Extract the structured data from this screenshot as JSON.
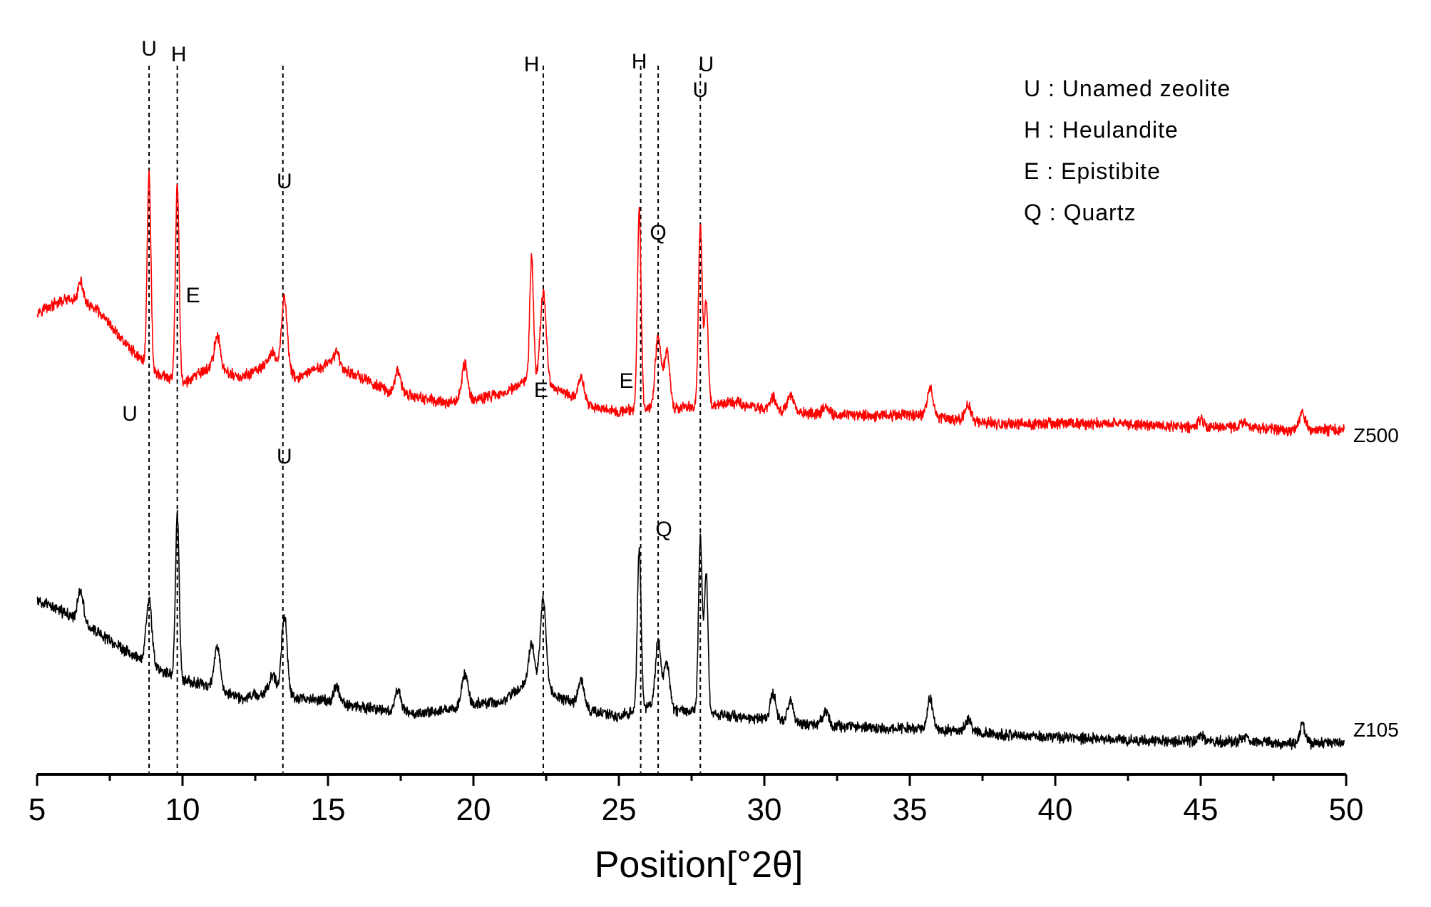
{
  "chart_data": {
    "type": "line",
    "xlabel": "Position[°2θ]",
    "xlim": [
      5,
      50
    ],
    "xticks": [
      5,
      10,
      15,
      20,
      25,
      30,
      35,
      40,
      45,
      50
    ],
    "x_minor_step": 2.5,
    "ylabel": "",
    "yaxis_visible": false,
    "grid": false,
    "legend_position": "top-right",
    "legend": [
      "U : Unamed zeolite",
      "H : Heulandite",
      "E : Epistibite",
      "Q : Quartz"
    ],
    "series": [
      {
        "name": "Z500",
        "color": "#ff0000",
        "baseline": [
          [
            5,
            180
          ],
          [
            6,
            200
          ],
          [
            7,
            185
          ],
          [
            8,
            130
          ],
          [
            9,
            80
          ],
          [
            10,
            60
          ],
          [
            11,
            90
          ],
          [
            12,
            70
          ],
          [
            13,
            95
          ],
          [
            14,
            70
          ],
          [
            15,
            95
          ],
          [
            16,
            75
          ],
          [
            17,
            50
          ],
          [
            18,
            40
          ],
          [
            19,
            30
          ],
          [
            20,
            35
          ],
          [
            21,
            45
          ],
          [
            22,
            70
          ],
          [
            23,
            50
          ],
          [
            24,
            25
          ],
          [
            25,
            15
          ],
          [
            26,
            20
          ],
          [
            27,
            20
          ],
          [
            28,
            25
          ],
          [
            29,
            30
          ],
          [
            30,
            20
          ],
          [
            31,
            15
          ],
          [
            32,
            10
          ],
          [
            33,
            10
          ],
          [
            34,
            8
          ],
          [
            35,
            10
          ],
          [
            36,
            5
          ],
          [
            37,
            0
          ],
          [
            38,
            -5
          ],
          [
            40,
            -5
          ],
          [
            42,
            -5
          ],
          [
            44,
            -10
          ],
          [
            46,
            -10
          ],
          [
            48,
            -15
          ],
          [
            50,
            -15
          ]
        ],
        "peaks": [
          {
            "x": 6.5,
            "height": 35
          },
          {
            "x": 8.85,
            "height": 320
          },
          {
            "x": 9.82,
            "height": 330
          },
          {
            "x": 11.2,
            "height": 55
          },
          {
            "x": 13.1,
            "height": 20
          },
          {
            "x": 13.5,
            "height": 120
          },
          {
            "x": 15.3,
            "height": 25
          },
          {
            "x": 17.4,
            "height": 35
          },
          {
            "x": 19.7,
            "height": 60
          },
          {
            "x": 22.0,
            "height": 200
          },
          {
            "x": 22.4,
            "height": 150
          },
          {
            "x": 23.7,
            "height": 40
          },
          {
            "x": 25.7,
            "height": 330
          },
          {
            "x": 26.35,
            "height": 120
          },
          {
            "x": 26.65,
            "height": 95
          },
          {
            "x": 27.8,
            "height": 300
          },
          {
            "x": 28.0,
            "height": 175
          },
          {
            "x": 30.3,
            "height": 20
          },
          {
            "x": 30.9,
            "height": 25
          },
          {
            "x": 32.1,
            "height": 15
          },
          {
            "x": 35.7,
            "height": 50
          },
          {
            "x": 37.0,
            "height": 25
          },
          {
            "x": 45.0,
            "height": 10
          },
          {
            "x": 46.5,
            "height": 10
          },
          {
            "x": 48.5,
            "height": 25
          }
        ]
      },
      {
        "name": "Z105",
        "color": "#000000",
        "baseline": [
          [
            5,
            220
          ],
          [
            6,
            200
          ],
          [
            7,
            170
          ],
          [
            8,
            140
          ],
          [
            9,
            110
          ],
          [
            10,
            90
          ],
          [
            11,
            80
          ],
          [
            12,
            60
          ],
          [
            13,
            70
          ],
          [
            14,
            60
          ],
          [
            15,
            55
          ],
          [
            16,
            45
          ],
          [
            17,
            40
          ],
          [
            18,
            35
          ],
          [
            19,
            40
          ],
          [
            20,
            50
          ],
          [
            21,
            55
          ],
          [
            22,
            90
          ],
          [
            23,
            60
          ],
          [
            24,
            40
          ],
          [
            25,
            30
          ],
          [
            26,
            45
          ],
          [
            27,
            40
          ],
          [
            28,
            35
          ],
          [
            29,
            30
          ],
          [
            30,
            25
          ],
          [
            31,
            20
          ],
          [
            32,
            15
          ],
          [
            33,
            12
          ],
          [
            34,
            10
          ],
          [
            35,
            10
          ],
          [
            36,
            8
          ],
          [
            37,
            5
          ],
          [
            38,
            0
          ],
          [
            40,
            -5
          ],
          [
            42,
            -8
          ],
          [
            44,
            -12
          ],
          [
            46,
            -12
          ],
          [
            48,
            -15
          ],
          [
            50,
            -15
          ]
        ],
        "peaks": [
          {
            "x": 6.5,
            "height": 55
          },
          {
            "x": 8.85,
            "height": 110
          },
          {
            "x": 9.82,
            "height": 270
          },
          {
            "x": 11.2,
            "height": 70
          },
          {
            "x": 13.1,
            "height": 30
          },
          {
            "x": 13.5,
            "height": 130
          },
          {
            "x": 15.3,
            "height": 25
          },
          {
            "x": 17.4,
            "height": 35
          },
          {
            "x": 19.7,
            "height": 55
          },
          {
            "x": 22.0,
            "height": 60
          },
          {
            "x": 22.4,
            "height": 145
          },
          {
            "x": 23.7,
            "height": 45
          },
          {
            "x": 25.7,
            "height": 270
          },
          {
            "x": 26.35,
            "height": 110
          },
          {
            "x": 26.65,
            "height": 75
          },
          {
            "x": 27.8,
            "height": 290
          },
          {
            "x": 28.0,
            "height": 230
          },
          {
            "x": 30.3,
            "height": 45
          },
          {
            "x": 30.9,
            "height": 35
          },
          {
            "x": 32.1,
            "height": 25
          },
          {
            "x": 35.7,
            "height": 50
          },
          {
            "x": 37.0,
            "height": 20
          },
          {
            "x": 45.0,
            "height": 12
          },
          {
            "x": 46.5,
            "height": 10
          },
          {
            "x": 48.5,
            "height": 30
          }
        ]
      }
    ],
    "reference_lines": [
      {
        "x": 8.85
      },
      {
        "x": 9.82
      },
      {
        "x": 13.45
      },
      {
        "x": 22.4
      },
      {
        "x": 25.75
      },
      {
        "x": 26.35
      },
      {
        "x": 27.8
      }
    ],
    "peak_labels": [
      {
        "series": "Z500",
        "text": "U",
        "x": 8.85
      },
      {
        "series": "Z500",
        "text": "H",
        "x": 9.82
      },
      {
        "series": "Z500",
        "text": "U",
        "x": 13.5
      },
      {
        "series": "Z500",
        "text": "H",
        "x": 22.0
      },
      {
        "series": "Z500",
        "text": "H",
        "x": 25.7
      },
      {
        "series": "Z500",
        "text": "Q",
        "x": 26.35
      },
      {
        "series": "Z500",
        "text": "U",
        "x": 27.8
      },
      {
        "series": "Z105",
        "text": "E",
        "x": 9.82
      },
      {
        "series": "Z105",
        "text": "U",
        "x": 8.85
      },
      {
        "series": "Z105",
        "text": "U",
        "x": 13.5
      },
      {
        "series": "Z105",
        "text": "E",
        "x": 22.4
      },
      {
        "series": "Z105",
        "text": "E",
        "x": 25.7
      },
      {
        "series": "Z105",
        "text": "Q",
        "x": 26.35
      },
      {
        "series": "Z105",
        "text": "U",
        "x": 28.0
      }
    ]
  }
}
